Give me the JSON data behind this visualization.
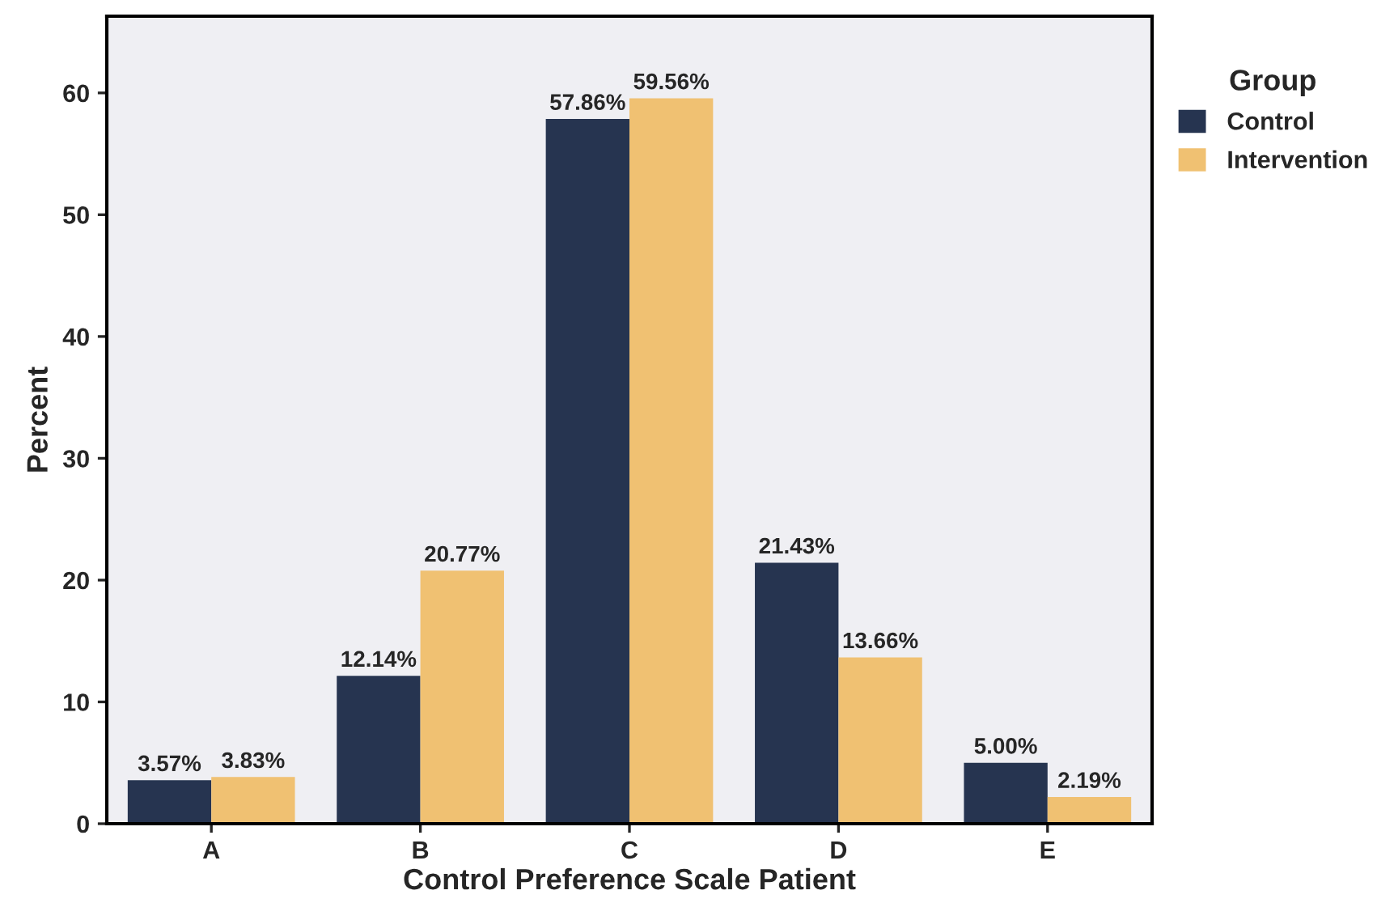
{
  "chart_data": {
    "type": "bar",
    "xlabel": "Control Preference Scale Patient",
    "ylabel": "Percent",
    "legend_title": "Group",
    "legend": "right",
    "categories": [
      "A",
      "B",
      "C",
      "D",
      "E"
    ],
    "series": [
      {
        "name": "Control",
        "color": "#263450",
        "values": [
          3.57,
          12.14,
          57.86,
          21.43,
          5.0
        ],
        "value_labels": [
          "3.57%",
          "12.14%",
          "57.86%",
          "21.43%",
          "5.00%"
        ]
      },
      {
        "name": "Intervention",
        "color": "#f0c172",
        "values": [
          3.83,
          20.77,
          59.56,
          13.66,
          2.19
        ],
        "value_labels": [
          "3.83%",
          "20.77%",
          "59.56%",
          "13.66%",
          "2.19%"
        ]
      }
    ],
    "ylim": [
      0,
      66.3
    ],
    "yticks": [
      0,
      10,
      20,
      30,
      40,
      50,
      60
    ],
    "grid": false
  }
}
